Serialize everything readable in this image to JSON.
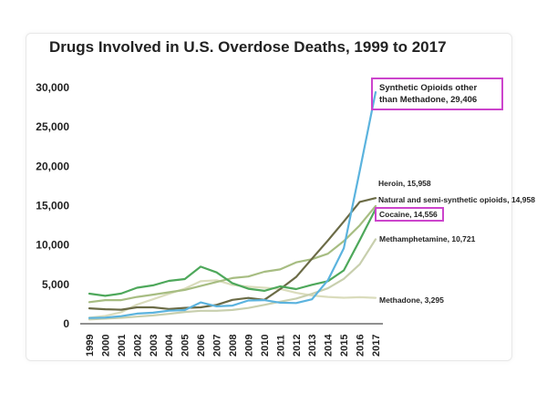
{
  "chart_data": {
    "type": "line",
    "title": "Drugs Involved in U.S. Overdose Deaths, 1999 to 2017",
    "xlabel": "",
    "ylabel": "",
    "ylim": [
      0,
      30000
    ],
    "y_ticks": [
      "0",
      "5,000",
      "10,000",
      "15,000",
      "20,000",
      "25,000",
      "30,000"
    ],
    "x": [
      "1999",
      "2000",
      "2001",
      "2002",
      "2003",
      "2004",
      "2005",
      "2006",
      "2007",
      "2008",
      "2009",
      "2010",
      "2011",
      "2012",
      "2013",
      "2014",
      "2015",
      "2016",
      "2017"
    ],
    "grid": false,
    "series": [
      {
        "name": "Synthetic Opioids other than Methadone",
        "color": "#5bb3de",
        "values": [
          730,
          780,
          960,
          1290,
          1400,
          1660,
          1740,
          2710,
          2210,
          2300,
          2950,
          3000,
          2670,
          2630,
          3100,
          5540,
          9580,
          19410,
          29406
        ],
        "label": "Synthetic Opioids other than Methadone, 29,406",
        "highlight": true
      },
      {
        "name": "Heroin",
        "color": "#6b6b46",
        "values": [
          1960,
          1840,
          1780,
          2090,
          2080,
          1880,
          2010,
          2090,
          2400,
          3040,
          3280,
          3040,
          4400,
          5930,
          8260,
          10570,
          12990,
          15470,
          15958
        ],
        "label": "Heroin, 15,958",
        "highlight": false
      },
      {
        "name": "Natural and semi-synthetic opioids",
        "color": "#a7bd82",
        "values": [
          2750,
          3000,
          3000,
          3400,
          3700,
          4000,
          4300,
          4800,
          5300,
          5800,
          6000,
          6600,
          6900,
          7800,
          8200,
          8900,
          10500,
          12500,
          14958
        ],
        "label": "Natural and semi-synthetic opioids, 14,958",
        "highlight": false
      },
      {
        "name": "Cocaine",
        "color": "#4ea85b",
        "values": [
          3820,
          3540,
          3830,
          4570,
          4880,
          5440,
          5670,
          7250,
          6520,
          5140,
          4450,
          4180,
          4750,
          4400,
          4950,
          5410,
          6780,
          10620,
          14556
        ],
        "label": "Cocaine, 14,556",
        "highlight": true
      },
      {
        "name": "Methamphetamine",
        "color": "#c8cfae",
        "values": [
          550,
          650,
          750,
          900,
          1050,
          1250,
          1500,
          1650,
          1650,
          1750,
          2000,
          2400,
          2800,
          3200,
          3800,
          4500,
          5700,
          7550,
          10721
        ],
        "label": "Methamphetamine, 10,721",
        "highlight": false
      },
      {
        "name": "Methadone",
        "color": "#dadcbc",
        "values": [
          780,
          980,
          1460,
          2430,
          3110,
          3800,
          4460,
          5400,
          5520,
          4930,
          4700,
          4580,
          4420,
          3930,
          3590,
          3400,
          3300,
          3370,
          3295
        ],
        "label": "Methadone, 3,295",
        "highlight": false
      }
    ]
  },
  "colors": {
    "highlight_box": "#cc44cc"
  }
}
